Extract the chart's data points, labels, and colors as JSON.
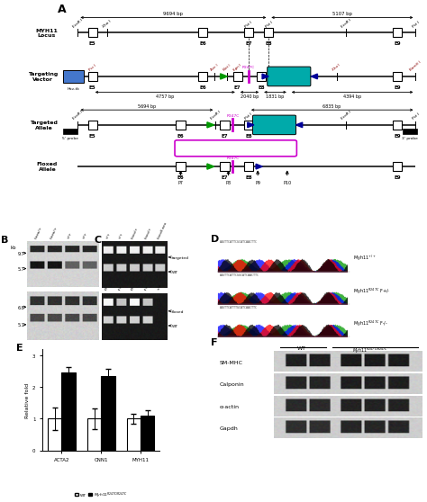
{
  "bp_9694": "9694 bp",
  "bp_5107": "5107 bp",
  "bp_4757": "4757 bp",
  "bp_2040": "2040 bp",
  "bp_1831": "1831 bp",
  "bp_4394": "4394 bp",
  "bp_5694": "5694 bp",
  "bp_6835": "6835 bp",
  "bar_categories": [
    "ACTA2",
    "CNN1",
    "MYH11"
  ],
  "bar_wt": [
    1.0,
    1.0,
    1.0
  ],
  "bar_mut": [
    2.45,
    2.35,
    1.1
  ],
  "bar_wt_err": [
    0.35,
    0.32,
    0.15
  ],
  "bar_mut_err": [
    0.18,
    0.22,
    0.18
  ],
  "ylabel_E": "Relative fold",
  "wb_labels": [
    "SM-MHC",
    "Calponin",
    "α-actin",
    "Gapdh"
  ],
  "green": "#009900",
  "teal": "#00aaaa",
  "purple": "#cc00cc",
  "dark_blue": "#000099",
  "blue_fill": "#4477cc",
  "bg": "#ffffff"
}
